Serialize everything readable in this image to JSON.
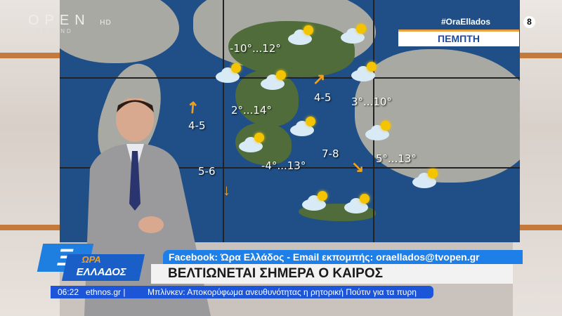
{
  "channel": {
    "logo": "OPEN",
    "hd": "HD",
    "sub": "BEYOND",
    "hashtag": "#OraEllados",
    "rating": "8"
  },
  "weather": {
    "day": "ΠΕΜΠΤΗ",
    "temps": [
      "-10°...12°",
      "2°...14°",
      "-4°...13°",
      "3°...10°",
      "5°...13°"
    ],
    "winds": [
      "4-5",
      "4-5",
      "7-8",
      "5-6"
    ]
  },
  "show": {
    "logo": "Ξ",
    "name_line1": "ΩΡΑ",
    "name_line2": "ΕΛΛΑΔΟΣ",
    "info": "Facebook: Ώρα Ελλάδος - Email εκπομπής: oraellados@tvopen.gr",
    "headline": "ΒΕΛΤΙΩΝΕΤΑΙ ΣΗΜΕΡΑ Ο ΚΑΙΡΟΣ"
  },
  "ticker": {
    "time": "06:22",
    "source": "ethnos.gr |",
    "text": "Μπλίνκεν: Αποκορύφωμα ανευθυνότητας η ρητορική Πούτιν για τα πυρη"
  },
  "colors": {
    "accent": "#1f7fe8",
    "sea": "#1f4f86"
  }
}
